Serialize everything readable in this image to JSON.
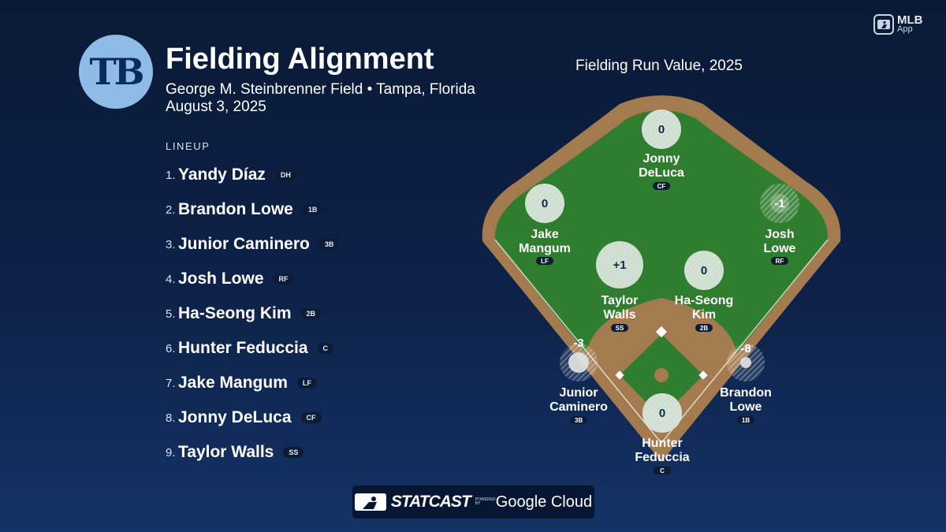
{
  "header": {
    "logo_text": "TB",
    "title": "Fielding Alignment",
    "venue": "George M. Steinbrenner Field • Tampa, Florida",
    "date": "August 3, 2025"
  },
  "app_badge": {
    "line1": "MLB",
    "line2": "App"
  },
  "lineup": {
    "header": "LINEUP",
    "players": [
      {
        "num": "1.",
        "name": "Yandy Díaz",
        "pos": "DH"
      },
      {
        "num": "2.",
        "name": "Brandon Lowe",
        "pos": "1B"
      },
      {
        "num": "3.",
        "name": "Junior Caminero",
        "pos": "3B"
      },
      {
        "num": "4.",
        "name": "Josh Lowe",
        "pos": "RF"
      },
      {
        "num": "5.",
        "name": "Ha-Seong Kim",
        "pos": "2B"
      },
      {
        "num": "6.",
        "name": "Hunter Feduccia",
        "pos": "C"
      },
      {
        "num": "7.",
        "name": "Jake Mangum",
        "pos": "LF"
      },
      {
        "num": "8.",
        "name": "Jonny DeLuca",
        "pos": "CF"
      },
      {
        "num": "9.",
        "name": "Taylor Walls",
        "pos": "SS"
      }
    ]
  },
  "chart": {
    "title": "Fielding Run Value, 2025",
    "fielders": [
      {
        "first": "Jonny",
        "last": "DeLuca",
        "pos": "CF",
        "run_value": "0"
      },
      {
        "first": "Jake",
        "last": "Mangum",
        "pos": "LF",
        "run_value": "0"
      },
      {
        "first": "Josh",
        "last": "Lowe",
        "pos": "RF",
        "run_value": "-1"
      },
      {
        "first": "Taylor",
        "last": "Walls",
        "pos": "SS",
        "run_value": "+1"
      },
      {
        "first": "Ha-Seong",
        "last": "Kim",
        "pos": "2B",
        "run_value": "0"
      },
      {
        "first": "Junior",
        "last": "Caminero",
        "pos": "3B",
        "run_value": "-3"
      },
      {
        "first": "Brandon",
        "last": "Lowe",
        "pos": "1B",
        "run_value": "-8"
      },
      {
        "first": "Hunter",
        "last": "Feduccia",
        "pos": "C",
        "run_value": "0"
      }
    ]
  },
  "footer": {
    "statcast": "STATCAST",
    "powered_by": "POWERED BY",
    "cloud": "Google Cloud"
  },
  "colors": {
    "grass": "#2f7d2f",
    "dirt": "#a47a4f",
    "logo_bg": "#8fbce6",
    "logo_text": "#092c5c"
  }
}
